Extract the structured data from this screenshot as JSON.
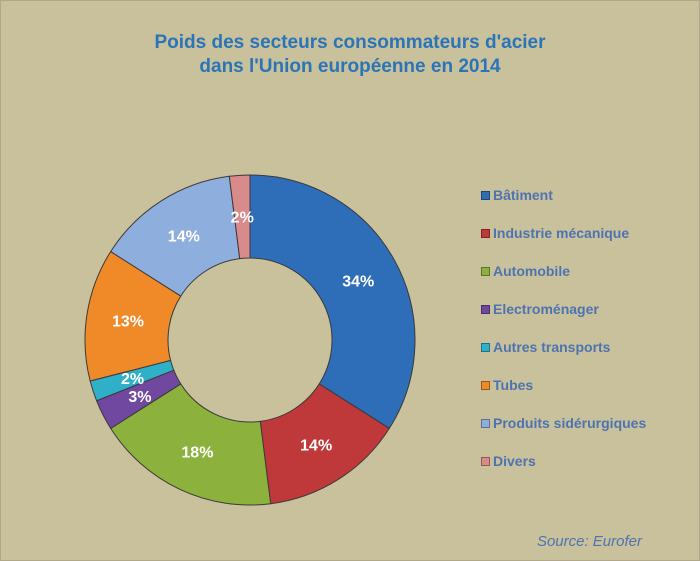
{
  "chart_data": {
    "type": "pie",
    "subtype": "donut",
    "title": [
      "Poids des secteurs consommateurs d'acier",
      "dans l'Union européenne en 2014"
    ],
    "categories": [
      "Bâtiment",
      "Industrie mécanique",
      "Automobile",
      "Electroménager",
      "Autres transports",
      "Tubes",
      "Produits sidérurgiques",
      "Divers"
    ],
    "values": [
      34,
      14,
      18,
      3,
      2,
      13,
      14,
      2
    ],
    "data_labels": [
      "34%",
      "14%",
      "18%",
      "3%",
      "2%",
      "13%",
      "14%",
      "2%"
    ],
    "colors": [
      "#2e6db8",
      "#c0393a",
      "#8cb23d",
      "#7048a0",
      "#2fb0c8",
      "#f08a28",
      "#8eaedd",
      "#d98a8a"
    ],
    "legend_position": "right",
    "source": "Source: Eurofer"
  }
}
